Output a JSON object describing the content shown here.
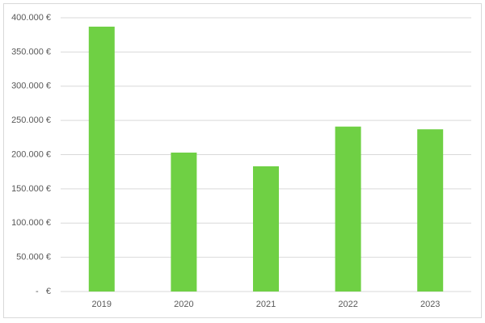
{
  "chart_data": {
    "type": "bar",
    "categories": [
      "2019",
      "2020",
      "2021",
      "2022",
      "2023"
    ],
    "values": [
      387000,
      203000,
      183000,
      241000,
      237000
    ],
    "color": "#6fd044",
    "ylim": [
      0,
      400000
    ],
    "yticks": [
      {
        "value": 0,
        "label": "-   €"
      },
      {
        "value": 50000,
        "label": "50.000 €"
      },
      {
        "value": 100000,
        "label": "100.000 €"
      },
      {
        "value": 150000,
        "label": "150.000 €"
      },
      {
        "value": 200000,
        "label": "200.000 €"
      },
      {
        "value": 250000,
        "label": "250.000 €"
      },
      {
        "value": 300000,
        "label": "300.000 €"
      },
      {
        "value": 350000,
        "label": "350.000 €"
      },
      {
        "value": 400000,
        "label": "400.000 €"
      }
    ],
    "grid": true
  }
}
